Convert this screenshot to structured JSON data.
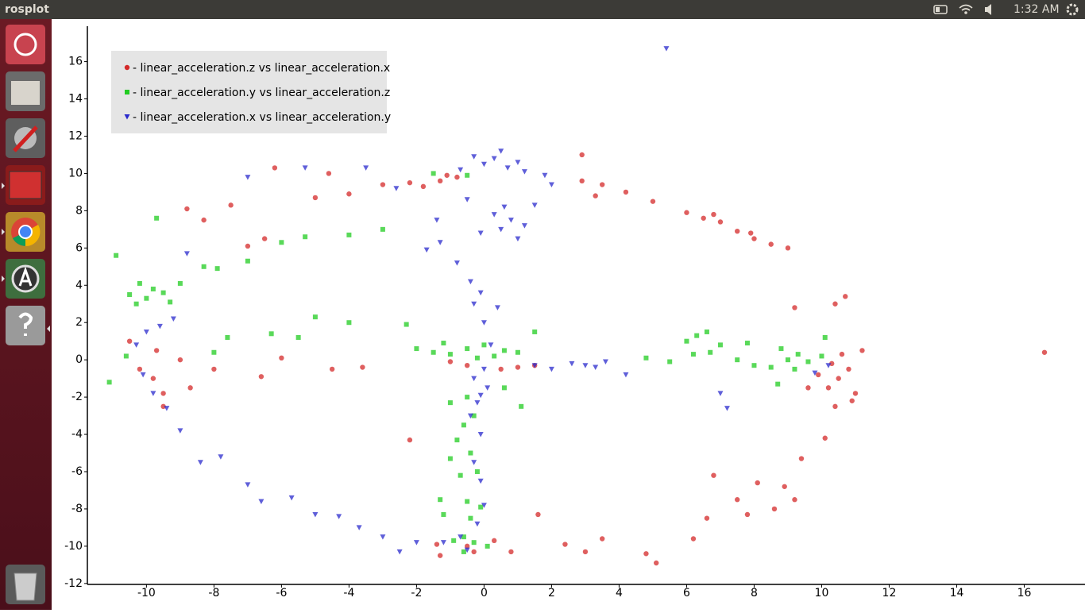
{
  "window": {
    "title": "rosplot"
  },
  "panel": {
    "time": "1:32 AM"
  },
  "chart_data": {
    "type": "scatter",
    "legend": "upper left",
    "xlim": [
      -11.75,
      17.8
    ],
    "ylim": [
      -12.05,
      17.9
    ],
    "xticks": [
      -10,
      -8,
      -6,
      -4,
      -2,
      0,
      2,
      4,
      6,
      8,
      10,
      12,
      14,
      16
    ],
    "yticks": [
      -12,
      -10,
      -8,
      -6,
      -4,
      -2,
      0,
      2,
      4,
      6,
      8,
      10,
      12,
      14,
      16
    ],
    "series": [
      {
        "name": "- linear_acceleration.z vs linear_acceleration.x",
        "color": "#d42a2a",
        "marker": "circle",
        "x": [
          10.5,
          10.8,
          10.2,
          10.6,
          11,
          10.3,
          10.9,
          10.4,
          11.2,
          9.9,
          10.7,
          9.2,
          10.4,
          9.6,
          10.1,
          9.4,
          8.9,
          8.1,
          7.8,
          9.2,
          6.6,
          6.2,
          4.8,
          5.1,
          3.5,
          3,
          2.4,
          1.6,
          6.8,
          8.6,
          7.5,
          6,
          6.5,
          7,
          7.5,
          8,
          8.5,
          6.8,
          7.9,
          9,
          5,
          4.2,
          3.5,
          2.9,
          3.3,
          2.9,
          -0.8,
          -1.3,
          -1.8,
          -1.1,
          -2.2,
          -3,
          -4,
          -4.6,
          -5,
          -6.2,
          -7.5,
          -8.3,
          -8.8,
          -6.5,
          -7,
          -9.7,
          -10.2,
          -9.8,
          -10.5,
          -9.5,
          -9,
          -8,
          -6.6,
          -6,
          -4.5,
          -3.6,
          -0.5,
          0.5,
          1,
          1.5,
          -1,
          -2.2,
          -0.5,
          -0.3,
          0.3,
          -1.4,
          -1.3,
          0.8,
          16.6,
          -9.5,
          -8.7
        ],
        "y": [
          -1,
          -0.5,
          -1.5,
          0.3,
          -1.8,
          -0.2,
          -2.2,
          -2.5,
          0.5,
          -0.8,
          3.4,
          2.8,
          3,
          -1.5,
          -4.2,
          -5.3,
          -6.8,
          -6.6,
          -8.3,
          -7.5,
          -8.5,
          -9.6,
          -10.4,
          -10.9,
          -9.6,
          -10.3,
          -9.9,
          -8.3,
          -6.2,
          -8,
          -7.5,
          7.9,
          7.6,
          7.4,
          6.9,
          6.5,
          6.2,
          7.8,
          6.8,
          6,
          8.5,
          9,
          9.4,
          9.6,
          8.8,
          11,
          9.8,
          9.6,
          9.3,
          9.9,
          9.5,
          9.4,
          8.9,
          10,
          8.7,
          10.3,
          8.3,
          7.5,
          8.1,
          6.5,
          6.1,
          0.5,
          -0.5,
          -1,
          1,
          -1.8,
          0,
          -0.5,
          -0.9,
          0.1,
          -0.5,
          -0.4,
          -0.3,
          -0.5,
          -0.4,
          -0.3,
          -0.1,
          -4.3,
          -10,
          -10.3,
          -9.7,
          -9.9,
          -10.5,
          -10.3,
          0.4,
          -2.5,
          -1.5
        ]
      },
      {
        "name": "- linear_acceleration.y vs linear_acceleration.z",
        "color": "#22cc22",
        "marker": "square",
        "x": [
          -10,
          -9.5,
          -10.3,
          -9.8,
          -10.5,
          -9,
          -10.2,
          -9.3,
          -10.9,
          -9.7,
          -8.3,
          -7.9,
          -7,
          -6,
          -5.3,
          -4,
          -3,
          -1.5,
          -0.5,
          -2,
          -1.5,
          -1,
          -0.5,
          0,
          0.3,
          -1.2,
          -0.2,
          0.6,
          1,
          1.5,
          -2.3,
          -4,
          -5,
          -5.5,
          -6.3,
          -7.6,
          -8,
          -10.6,
          -11.1,
          -0.5,
          -1,
          -0.3,
          -0.6,
          -0.8,
          -0.4,
          -1,
          -0.2,
          -0.7,
          -1.3,
          -0.5,
          -0.1,
          -1.2,
          -0.4,
          -0.6,
          -0.3,
          -0.9,
          0.1,
          -0.6,
          0.6,
          1.1,
          6,
          6.3,
          6.6,
          7,
          6.7,
          7.5,
          8,
          8.5,
          6.2,
          5.5,
          4.8,
          9,
          9.3,
          9.6,
          10,
          9.2,
          8.8,
          7.8,
          10.1,
          8.7
        ],
        "y": [
          3.3,
          3.6,
          3,
          3.8,
          3.5,
          4.1,
          4.1,
          3.1,
          5.6,
          7.6,
          5,
          4.9,
          5.3,
          6.3,
          6.6,
          6.7,
          7,
          10,
          9.9,
          0.6,
          0.4,
          0.3,
          0.6,
          0.8,
          0.2,
          0.9,
          0.1,
          0.5,
          0.4,
          1.5,
          1.9,
          2,
          2.3,
          1.2,
          1.4,
          1.2,
          0.4,
          0.2,
          -1.2,
          -2,
          -2.3,
          -3,
          -3.5,
          -4.3,
          -5,
          -5.3,
          -6,
          -6.2,
          -7.5,
          -7.6,
          -7.9,
          -8.3,
          -8.5,
          -9.5,
          -9.8,
          -9.7,
          -10,
          -10.3,
          -1.5,
          -2.5,
          1,
          1.3,
          1.5,
          0.8,
          0.4,
          0,
          -0.3,
          -0.4,
          0.3,
          -0.1,
          0.1,
          0,
          0.3,
          -0.1,
          0.2,
          -0.5,
          0.6,
          0.9,
          1.2,
          -1.3
        ]
      },
      {
        "name": "- linear_acceleration.x vs linear_acceleration.y",
        "color": "#2a2acc",
        "marker": "triangle",
        "x": [
          0,
          0.3,
          0.7,
          1,
          -0.3,
          0.5,
          1.2,
          -0.7,
          0.8,
          1.2,
          0.5,
          1,
          0.3,
          -0.1,
          0.6,
          1.5,
          -0.5,
          -1.3,
          -1.7,
          -0.8,
          -0.4,
          -0.1,
          -0.3,
          0.4,
          0,
          0.2,
          0,
          -0.3,
          0.1,
          -0.2,
          -0.4,
          -0.1,
          -0.3,
          -0.1,
          0,
          -0.2,
          -0.7,
          -1.2,
          -0.5,
          -2,
          -2.5,
          -3,
          -3.7,
          -4.3,
          -5,
          -5.7,
          -6.6,
          -7,
          -7.8,
          -8.4,
          -9,
          -9.4,
          -9.8,
          -10.1,
          -10,
          -9.6,
          -10.3,
          -9.2,
          -8.8,
          -7,
          -5.3,
          -3.5,
          -2.6,
          -1.4,
          3,
          3.3,
          2.6,
          3.6,
          2,
          1.5,
          4.2,
          7,
          7.2,
          9.8,
          10.2,
          5.4,
          2,
          1.8,
          -0.1
        ],
        "y": [
          10.5,
          10.8,
          10.3,
          10.6,
          10.9,
          11.2,
          10.1,
          10.2,
          7.5,
          7.2,
          7,
          6.5,
          7.8,
          6.8,
          8.2,
          8.3,
          8.6,
          6.3,
          5.9,
          5.2,
          4.2,
          3.6,
          3,
          2.8,
          2,
          0.8,
          -0.5,
          -1,
          -1.5,
          -2.3,
          -3,
          -4,
          -5.5,
          -6.5,
          -7.8,
          -8.8,
          -9.5,
          -9.8,
          -10.2,
          -9.8,
          -10.3,
          -9.5,
          -9,
          -8.4,
          -8.3,
          -7.4,
          -7.6,
          -6.7,
          -5.2,
          -5.5,
          -3.8,
          -2.6,
          -1.8,
          -0.8,
          1.5,
          1.8,
          0.8,
          2.2,
          5.7,
          9.8,
          10.3,
          10.3,
          9.2,
          7.5,
          -0.3,
          -0.4,
          -0.2,
          -0.1,
          -0.5,
          -0.3,
          -0.8,
          -1.8,
          -2.6,
          -0.7,
          -0.3,
          16.7,
          9.4,
          9.9,
          -1.9
        ]
      }
    ]
  }
}
